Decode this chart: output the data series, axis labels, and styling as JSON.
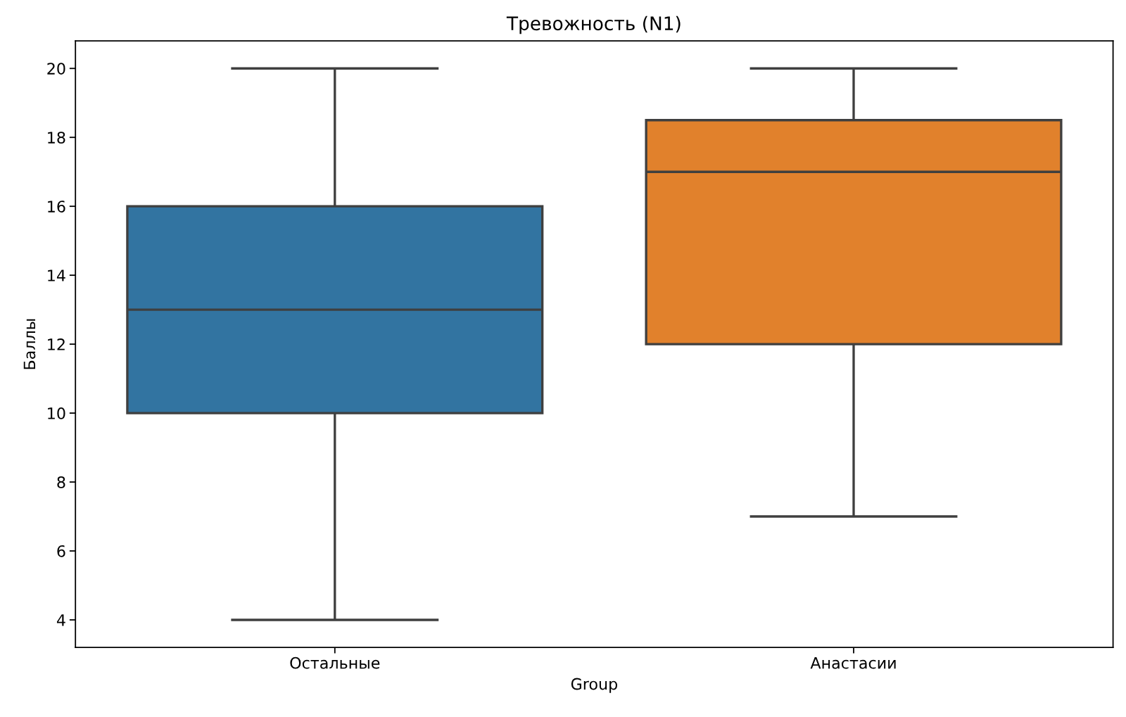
{
  "chart_data": {
    "type": "box",
    "title": "Тревожность (N1)",
    "xlabel": "Group",
    "ylabel": "Баллы",
    "categories": [
      "Остальные",
      "Анастасии"
    ],
    "boxes": [
      {
        "low": 4,
        "q1": 10,
        "median": 13,
        "q3": 16,
        "high": 20
      },
      {
        "low": 7,
        "q1": 12,
        "median": 17,
        "q3": 18.5,
        "high": 20
      }
    ],
    "colors": [
      "#3274a1",
      "#e1812c"
    ],
    "ylim": [
      3.2,
      20.8
    ],
    "yticks": [
      4,
      6,
      8,
      10,
      12,
      14,
      16,
      18,
      20
    ]
  }
}
